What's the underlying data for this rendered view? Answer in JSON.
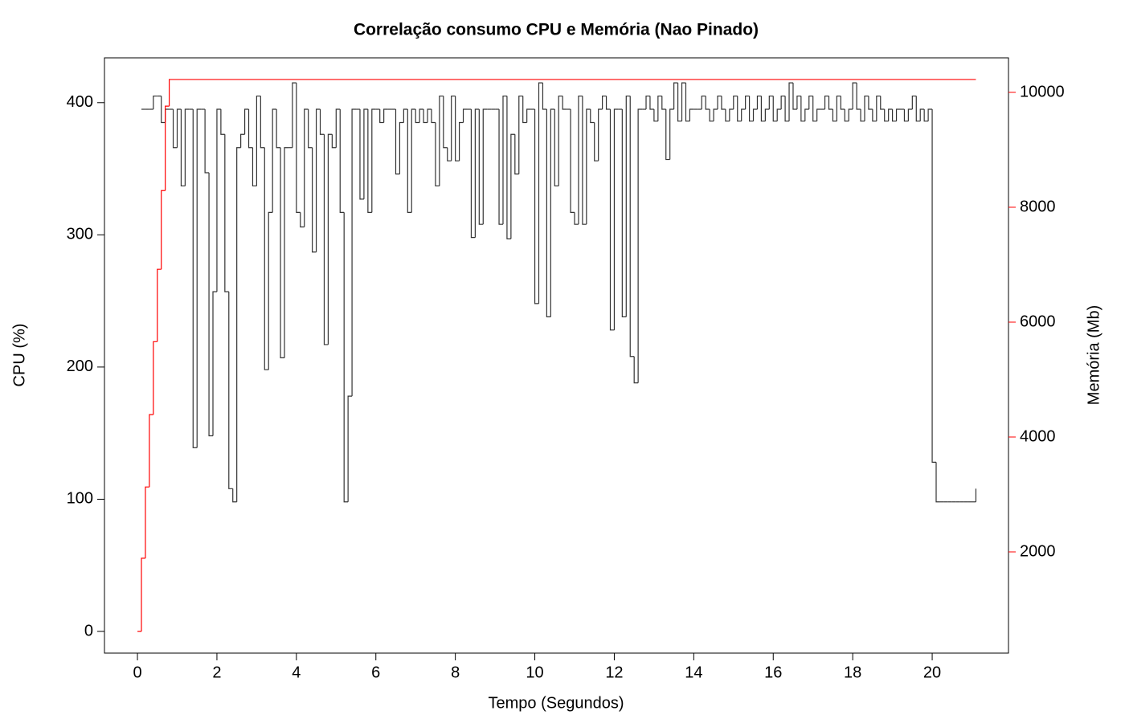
{
  "chart_data": {
    "type": "step",
    "title": "Correlação consumo CPU e Memória (Nao Pinado)",
    "x_label": "Tempo (Segundos)",
    "y_label": "CPU (%)",
    "y2_label": "Memória (Mb)",
    "xlim": [
      -0.83,
      21.92
    ],
    "xticks": [
      0,
      2,
      4,
      6,
      8,
      10,
      12,
      14,
      16,
      18,
      20
    ],
    "ylim": [
      -16.4,
      433.9
    ],
    "yticks": [
      0,
      100,
      200,
      300,
      400
    ],
    "y2lim": [
      238,
      10601
    ],
    "y2ticks": [
      2000,
      4000,
      6000,
      8000,
      10000
    ],
    "y2_color": "#ff0000",
    "series": [
      {
        "color": "#333333",
        "x": [
          0.1,
          0.2,
          0.3,
          0.4,
          0.5,
          0.6,
          0.7,
          0.8,
          0.9,
          1.0,
          1.1,
          1.2,
          1.3,
          1.4,
          1.5,
          1.6,
          1.7,
          1.8,
          1.9,
          2.0,
          2.1,
          2.2,
          2.3,
          2.4,
          2.5,
          2.6,
          2.7,
          2.8,
          2.9,
          3.0,
          3.1,
          3.2,
          3.3,
          3.4,
          3.5,
          3.6,
          3.7,
          3.8,
          3.9,
          4.0,
          4.1,
          4.2,
          4.3,
          4.4,
          4.5,
          4.6,
          4.7,
          4.8,
          4.9,
          5.0,
          5.1,
          5.2,
          5.3,
          5.4,
          5.5,
          5.6,
          5.7,
          5.8,
          5.9,
          6.0,
          6.1,
          6.2,
          6.3,
          6.4,
          6.5,
          6.6,
          6.7,
          6.8,
          6.9,
          7.0,
          7.1,
          7.2,
          7.3,
          7.4,
          7.5,
          7.6,
          7.7,
          7.8,
          7.9,
          8.0,
          8.1,
          8.2,
          8.3,
          8.4,
          8.5,
          8.6,
          8.7,
          8.8,
          8.9,
          9.0,
          9.1,
          9.2,
          9.3,
          9.4,
          9.5,
          9.6,
          9.7,
          9.8,
          9.9,
          10.0,
          10.1,
          10.2,
          10.3,
          10.4,
          10.5,
          10.6,
          10.7,
          10.8,
          10.9,
          11.0,
          11.1,
          11.2,
          11.3,
          11.4,
          11.5,
          11.6,
          11.7,
          11.8,
          11.9,
          12.0,
          12.1,
          12.2,
          12.3,
          12.4,
          12.5,
          12.6,
          12.7,
          12.8,
          12.9,
          13.0,
          13.1,
          13.2,
          13.3,
          13.4,
          13.5,
          13.6,
          13.7,
          13.8,
          13.9,
          14.0,
          14.1,
          14.2,
          14.3,
          14.4,
          14.5,
          14.6,
          14.7,
          14.8,
          14.9,
          15.0,
          15.1,
          15.2,
          15.3,
          15.4,
          15.5,
          15.6,
          15.7,
          15.8,
          15.9,
          16.0,
          16.1,
          16.2,
          16.3,
          16.4,
          16.5,
          16.6,
          16.7,
          16.8,
          16.9,
          17.0,
          17.1,
          17.2,
          17.3,
          17.4,
          17.5,
          17.6,
          17.7,
          17.8,
          17.9,
          18.0,
          18.1,
          18.2,
          18.3,
          18.4,
          18.5,
          18.6,
          18.7,
          18.8,
          18.9,
          19.0,
          19.1,
          19.2,
          19.3,
          19.4,
          19.5,
          19.6,
          19.7,
          19.8,
          19.9,
          20.0,
          20.1,
          20.2,
          20.3,
          20.4,
          20.5,
          20.6,
          20.7,
          20.8,
          20.9,
          21.0,
          21.1
        ],
        "values": [
          395,
          395,
          395,
          405,
          405,
          385,
          395,
          395,
          366,
          395,
          337,
          395,
          395,
          139,
          395,
          395,
          347,
          148,
          257,
          395,
          376,
          257,
          108,
          98,
          366,
          376,
          395,
          366,
          337,
          405,
          366,
          198,
          317,
          395,
          366,
          207,
          366,
          366,
          415,
          317,
          306,
          395,
          366,
          287,
          395,
          376,
          217,
          376,
          366,
          395,
          317,
          98,
          178,
          395,
          395,
          327,
          395,
          317,
          395,
          395,
          385,
          395,
          395,
          395,
          346,
          385,
          395,
          317,
          395,
          385,
          395,
          385,
          395,
          385,
          337,
          405,
          366,
          356,
          405,
          356,
          385,
          395,
          395,
          298,
          395,
          308,
          395,
          395,
          395,
          395,
          308,
          405,
          297,
          376,
          346,
          405,
          385,
          395,
          395,
          248,
          415,
          395,
          238,
          395,
          337,
          405,
          395,
          395,
          317,
          308,
          405,
          308,
          395,
          385,
          356,
          395,
          405,
          395,
          228,
          395,
          395,
          238,
          405,
          208,
          188,
          395,
          395,
          405,
          395,
          386,
          405,
          395,
          357,
          395,
          415,
          386,
          415,
          386,
          395,
          395,
          395,
          405,
          395,
          386,
          395,
          405,
          395,
          386,
          395,
          405,
          386,
          395,
          405,
          386,
          395,
          405,
          386,
          395,
          405,
          386,
          395,
          405,
          386,
          415,
          395,
          405,
          386,
          395,
          405,
          386,
          395,
          395,
          405,
          395,
          386,
          405,
          395,
          386,
          395,
          415,
          395,
          386,
          405,
          395,
          386,
          405,
          395,
          386,
          395,
          386,
          395,
          395,
          386,
          395,
          405,
          386,
          395,
          386,
          395,
          128,
          98,
          98,
          98,
          98,
          98,
          98,
          98,
          98,
          98,
          98,
          108
        ]
      },
      {
        "color": "#ff0000",
        "axis": "y2",
        "x": [
          0.0,
          0.1,
          0.2,
          0.3,
          0.4,
          0.5,
          0.6,
          0.7,
          0.8,
          21.1
        ],
        "values": [
          615,
          1890,
          3130,
          4390,
          5660,
          6920,
          8290,
          9760,
          10224,
          10224
        ]
      }
    ]
  }
}
